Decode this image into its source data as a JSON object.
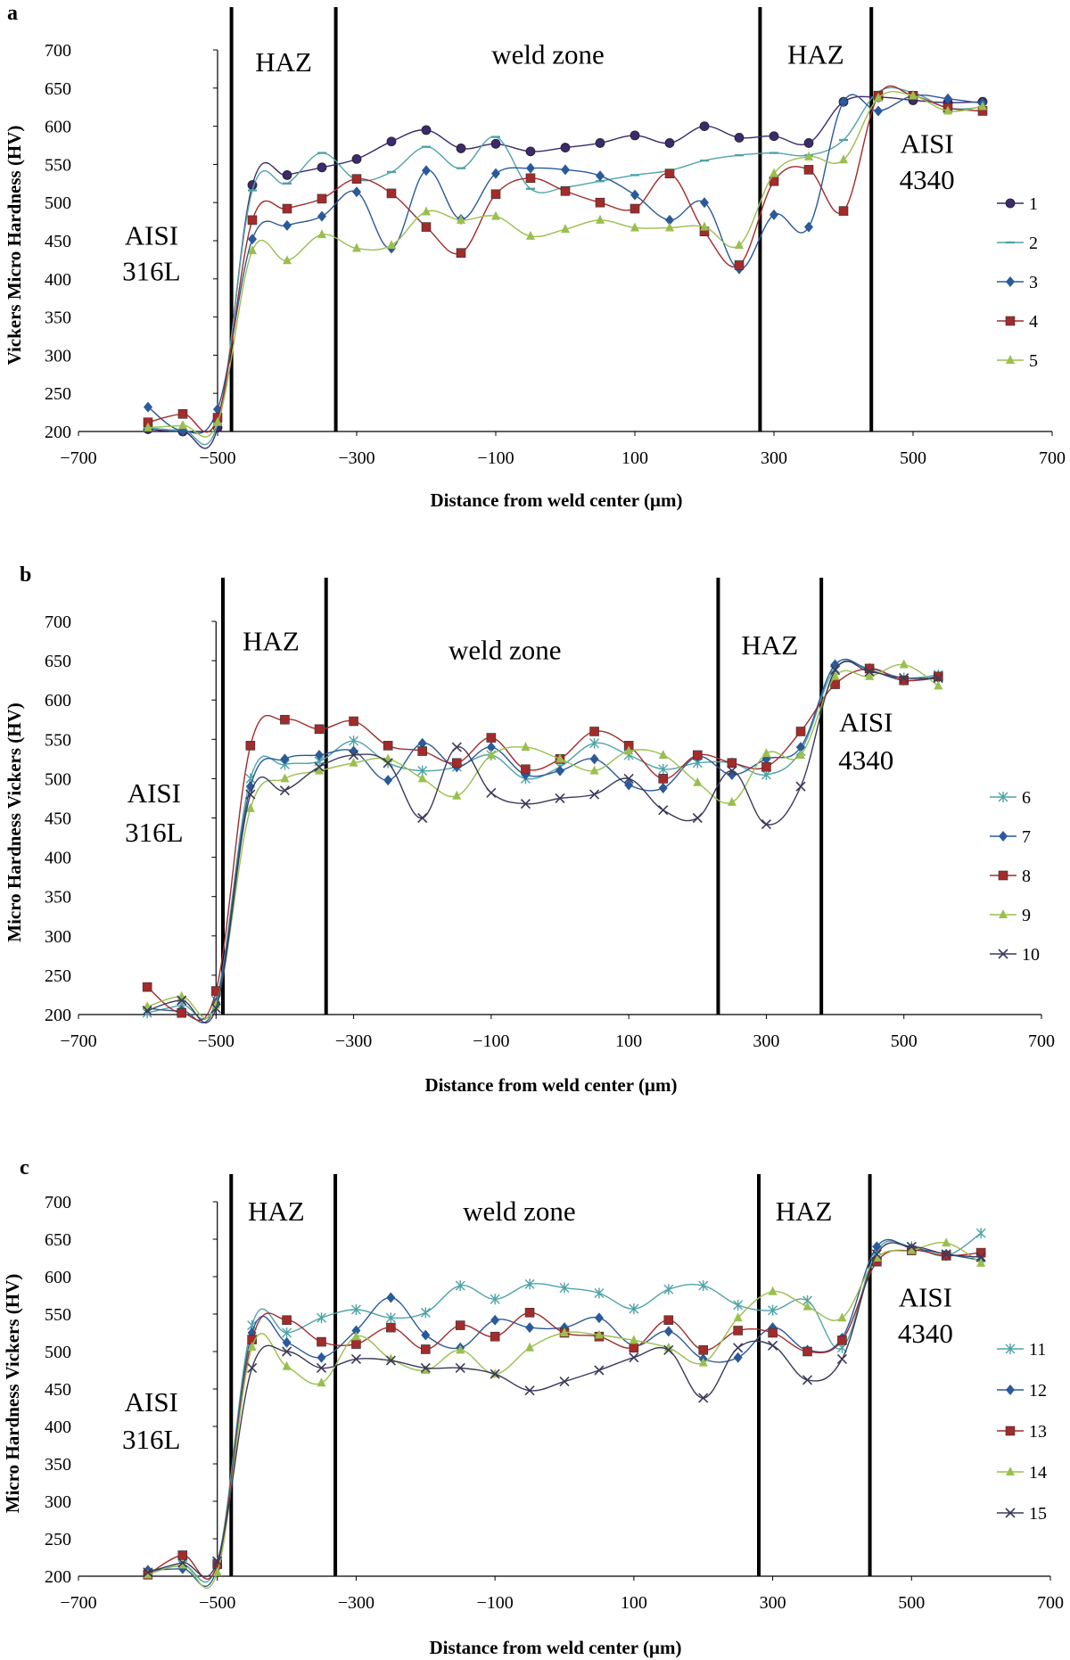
{
  "chart_data": [
    {
      "panel": "a",
      "type": "line",
      "xlabel": "Distance from weld center (µm)",
      "ylabel": "Vickers Micro Hardness (HV)",
      "xlim": [
        -700,
        700
      ],
      "ylim": [
        200,
        700
      ],
      "xticks": [
        -700,
        -500,
        -300,
        -100,
        100,
        300,
        500,
        700
      ],
      "yticks": [
        200,
        250,
        300,
        350,
        400,
        450,
        500,
        550,
        600,
        650,
        700
      ],
      "vlines": [
        -480,
        -330,
        280,
        440
      ],
      "annotations": [
        {
          "text": "HAZ",
          "x": -405,
          "y": 672
        },
        {
          "text": "weld zone",
          "x": -25,
          "y": 682
        },
        {
          "text": "HAZ",
          "x": 360,
          "y": 682
        },
        {
          "text": "AISI",
          "x": 520,
          "y": 565
        },
        {
          "text": "4340",
          "x": 520,
          "y": 518
        },
        {
          "text": "AISI",
          "x": -595,
          "y": 445
        },
        {
          "text": "316L",
          "x": -595,
          "y": 398
        }
      ],
      "series": [
        {
          "name": "1",
          "color": "#3b2a6e",
          "marker": "circle",
          "x": [
            -600,
            -550,
            -500,
            -450,
            -400,
            -350,
            -300,
            -250,
            -200,
            -150,
            -100,
            -50,
            0,
            50,
            100,
            150,
            200,
            250,
            300,
            350,
            400,
            450,
            500,
            550,
            600
          ],
          "y": [
            203,
            200,
            205,
            523,
            536,
            546,
            557,
            580,
            595,
            571,
            577,
            567,
            572,
            578,
            588,
            578,
            600,
            585,
            587,
            578,
            632,
            638,
            634,
            631,
            632
          ]
        },
        {
          "name": "2",
          "color": "#4fa3a8",
          "marker": "dash",
          "x": [
            -600,
            -550,
            -500,
            -450,
            -400,
            -350,
            -300,
            -250,
            -200,
            -150,
            -100,
            -50,
            0,
            50,
            100,
            150,
            200,
            250,
            300,
            350,
            400,
            450,
            500,
            550,
            600
          ],
          "y": [
            205,
            202,
            210,
            516,
            525,
            565,
            530,
            540,
            573,
            545,
            586,
            518,
            520,
            528,
            536,
            542,
            555,
            562,
            565,
            562,
            582,
            645,
            644,
            624,
            625
          ]
        },
        {
          "name": "3",
          "color": "#2a5a9a",
          "marker": "diamond",
          "x": [
            -600,
            -550,
            -500,
            -450,
            -400,
            -350,
            -300,
            -250,
            -200,
            -150,
            -100,
            -50,
            0,
            50,
            100,
            150,
            200,
            250,
            300,
            350,
            400,
            450,
            500,
            550,
            600
          ],
          "y": [
            232,
            201,
            229,
            452,
            470,
            482,
            514,
            440,
            542,
            478,
            538,
            545,
            543,
            535,
            510,
            477,
            500,
            413,
            484,
            468,
            632,
            620,
            640,
            636,
            630
          ]
        },
        {
          "name": "4",
          "color": "#a32b2b",
          "marker": "square",
          "x": [
            -600,
            -550,
            -500,
            -450,
            -400,
            -350,
            -300,
            -250,
            -200,
            -150,
            -100,
            -50,
            0,
            50,
            100,
            150,
            200,
            250,
            300,
            350,
            400,
            450,
            500,
            550,
            600
          ],
          "y": [
            212,
            223,
            218,
            477,
            492,
            505,
            531,
            512,
            468,
            434,
            511,
            532,
            515,
            500,
            492,
            538,
            462,
            418,
            528,
            543,
            489,
            640,
            640,
            624,
            620
          ]
        },
        {
          "name": "5",
          "color": "#9abf4e",
          "marker": "triangle",
          "x": [
            -600,
            -550,
            -500,
            -450,
            -400,
            -350,
            -300,
            -250,
            -200,
            -150,
            -100,
            -50,
            0,
            50,
            100,
            150,
            200,
            250,
            300,
            350,
            400,
            450,
            500,
            550,
            600
          ],
          "y": [
            205,
            208,
            212,
            437,
            424,
            458,
            440,
            444,
            488,
            477,
            482,
            456,
            465,
            477,
            467,
            467,
            468,
            444,
            538,
            560,
            556,
            637,
            640,
            620,
            626
          ]
        }
      ]
    },
    {
      "panel": "b",
      "type": "line",
      "xlabel": "Distance from weld center (µm)",
      "ylabel": "Micro Hardness Vickers (HV)",
      "xlim": [
        -700,
        700
      ],
      "ylim": [
        200,
        700
      ],
      "xticks": [
        -700,
        -500,
        -300,
        -100,
        100,
        300,
        500,
        700
      ],
      "yticks": [
        200,
        250,
        300,
        350,
        400,
        450,
        500,
        550,
        600,
        650,
        700
      ],
      "vlines": [
        -490,
        -340,
        230,
        380
      ],
      "annotations": [
        {
          "text": "HAZ",
          "x": -420,
          "y": 663
        },
        {
          "text": "weld zone",
          "x": -80,
          "y": 652
        },
        {
          "text": "HAZ",
          "x": 305,
          "y": 658
        },
        {
          "text": "AISI",
          "x": 445,
          "y": 560
        },
        {
          "text": "4340",
          "x": 445,
          "y": 512
        },
        {
          "text": "AISI",
          "x": -590,
          "y": 470
        },
        {
          "text": "316L",
          "x": -590,
          "y": 420
        }
      ],
      "series": [
        {
          "name": "6",
          "color": "#4fa3a8",
          "marker": "asterisk",
          "x": [
            -600,
            -550,
            -500,
            -450,
            -400,
            -350,
            -300,
            -250,
            -200,
            -150,
            -100,
            -50,
            0,
            50,
            100,
            150,
            200,
            250,
            300,
            350,
            400,
            450,
            500,
            550
          ],
          "y": [
            202,
            212,
            218,
            500,
            518,
            522,
            548,
            520,
            510,
            515,
            530,
            500,
            515,
            545,
            530,
            512,
            520,
            520,
            505,
            535,
            640,
            640,
            628,
            632
          ]
        },
        {
          "name": "7",
          "color": "#2a5a9a",
          "marker": "diamond",
          "x": [
            -600,
            -550,
            -500,
            -450,
            -400,
            -350,
            -300,
            -250,
            -200,
            -150,
            -100,
            -50,
            0,
            50,
            100,
            150,
            200,
            250,
            300,
            350,
            400,
            450,
            500,
            550
          ],
          "y": [
            208,
            205,
            215,
            490,
            525,
            530,
            535,
            498,
            545,
            515,
            540,
            505,
            510,
            525,
            492,
            488,
            528,
            505,
            525,
            540,
            645,
            638,
            625,
            628
          ]
        },
        {
          "name": "8",
          "color": "#a32b2b",
          "marker": "square",
          "x": [
            -600,
            -550,
            -500,
            -450,
            -400,
            -350,
            -300,
            -250,
            -200,
            -150,
            -100,
            -50,
            0,
            50,
            100,
            150,
            200,
            250,
            300,
            350,
            400,
            450,
            500,
            550
          ],
          "y": [
            235,
            202,
            230,
            542,
            575,
            563,
            573,
            542,
            535,
            520,
            552,
            512,
            525,
            560,
            542,
            500,
            530,
            520,
            515,
            560,
            620,
            640,
            625,
            630
          ]
        },
        {
          "name": "9",
          "color": "#9abf4e",
          "marker": "triangle",
          "x": [
            -600,
            -550,
            -500,
            -450,
            -400,
            -350,
            -300,
            -250,
            -200,
            -150,
            -100,
            -50,
            0,
            50,
            100,
            150,
            200,
            250,
            300,
            350,
            400,
            450,
            500,
            550
          ],
          "y": [
            210,
            223,
            212,
            462,
            500,
            510,
            520,
            525,
            500,
            478,
            530,
            540,
            525,
            510,
            535,
            530,
            495,
            470,
            532,
            530,
            630,
            630,
            645,
            618
          ]
        },
        {
          "name": "10",
          "color": "#3a3a5a",
          "marker": "x",
          "x": [
            -600,
            -550,
            -500,
            -450,
            -400,
            -350,
            -300,
            -250,
            -200,
            -150,
            -100,
            -50,
            0,
            50,
            100,
            150,
            200,
            250,
            300,
            350,
            400,
            450,
            500,
            550
          ],
          "y": [
            205,
            218,
            208,
            480,
            485,
            515,
            530,
            520,
            450,
            540,
            482,
            468,
            475,
            480,
            500,
            460,
            450,
            510,
            442,
            490,
            638,
            636,
            628,
            628
          ]
        }
      ]
    },
    {
      "panel": "c",
      "type": "line",
      "xlabel": "Distance from weld center (µm)",
      "ylabel": "Micro Hardness Vickers (HV)",
      "xlim": [
        -700,
        700
      ],
      "ylim": [
        200,
        700
      ],
      "xticks": [
        -700,
        -500,
        -300,
        -100,
        100,
        300,
        500,
        700
      ],
      "yticks": [
        200,
        250,
        300,
        350,
        400,
        450,
        500,
        550,
        600,
        650,
        700
      ],
      "vlines": [
        -480,
        -330,
        280,
        440
      ],
      "annotations": [
        {
          "text": "HAZ",
          "x": -415,
          "y": 675
        },
        {
          "text": "weld zone",
          "x": -65,
          "y": 675
        },
        {
          "text": "HAZ",
          "x": 345,
          "y": 675
        },
        {
          "text": "AISI",
          "x": 520,
          "y": 560
        },
        {
          "text": "4340",
          "x": 520,
          "y": 512
        },
        {
          "text": "AISI",
          "x": -595,
          "y": 420
        },
        {
          "text": "316L",
          "x": -595,
          "y": 370
        }
      ],
      "series": [
        {
          "name": "11",
          "color": "#4fa3a8",
          "marker": "asterisk",
          "x": [
            -600,
            -550,
            -500,
            -450,
            -400,
            -350,
            -300,
            -250,
            -200,
            -150,
            -100,
            -50,
            0,
            50,
            100,
            150,
            200,
            250,
            300,
            350,
            400,
            450,
            500,
            550,
            600
          ],
          "y": [
            205,
            215,
            218,
            535,
            525,
            545,
            556,
            545,
            552,
            588,
            570,
            590,
            585,
            578,
            557,
            583,
            588,
            562,
            555,
            568,
            505,
            635,
            640,
            628,
            658
          ]
        },
        {
          "name": "12",
          "color": "#2a5a9a",
          "marker": "diamond",
          "x": [
            -600,
            -550,
            -500,
            -450,
            -400,
            -350,
            -300,
            -250,
            -200,
            -150,
            -100,
            -50,
            0,
            50,
            100,
            150,
            200,
            250,
            300,
            350,
            400,
            450,
            500,
            550,
            600
          ],
          "y": [
            208,
            210,
            212,
            525,
            512,
            492,
            528,
            572,
            522,
            505,
            542,
            532,
            532,
            545,
            508,
            527,
            490,
            492,
            532,
            502,
            518,
            640,
            638,
            630,
            622
          ]
        },
        {
          "name": "13",
          "color": "#a32b2b",
          "marker": "square",
          "x": [
            -600,
            -550,
            -500,
            -450,
            -400,
            -350,
            -300,
            -250,
            -200,
            -150,
            -100,
            -50,
            0,
            50,
            100,
            150,
            200,
            250,
            300,
            350,
            400,
            450,
            500,
            550,
            600
          ],
          "y": [
            202,
            228,
            216,
            516,
            542,
            513,
            510,
            532,
            503,
            535,
            520,
            552,
            525,
            520,
            505,
            542,
            502,
            528,
            525,
            500,
            515,
            620,
            635,
            628,
            632
          ]
        },
        {
          "name": "14",
          "color": "#9abf4e",
          "marker": "triangle",
          "x": [
            -600,
            -550,
            -500,
            -450,
            -400,
            -350,
            -300,
            -250,
            -200,
            -150,
            -100,
            -50,
            0,
            50,
            100,
            150,
            200,
            250,
            300,
            350,
            400,
            450,
            500,
            550,
            600
          ],
          "y": [
            202,
            215,
            205,
            506,
            480,
            458,
            520,
            490,
            475,
            502,
            470,
            505,
            525,
            522,
            515,
            505,
            485,
            545,
            580,
            560,
            545,
            625,
            635,
            645,
            618
          ]
        },
        {
          "name": "15",
          "color": "#3a3a5a",
          "marker": "x",
          "x": [
            -600,
            -550,
            -500,
            -450,
            -400,
            -350,
            -300,
            -250,
            -200,
            -150,
            -100,
            -50,
            0,
            50,
            100,
            150,
            200,
            250,
            300,
            350,
            400,
            450,
            500,
            550,
            600
          ],
          "y": [
            205,
            218,
            220,
            478,
            500,
            478,
            490,
            488,
            478,
            478,
            470,
            448,
            460,
            475,
            492,
            502,
            438,
            505,
            508,
            462,
            490,
            630,
            640,
            630,
            626
          ]
        }
      ]
    }
  ]
}
